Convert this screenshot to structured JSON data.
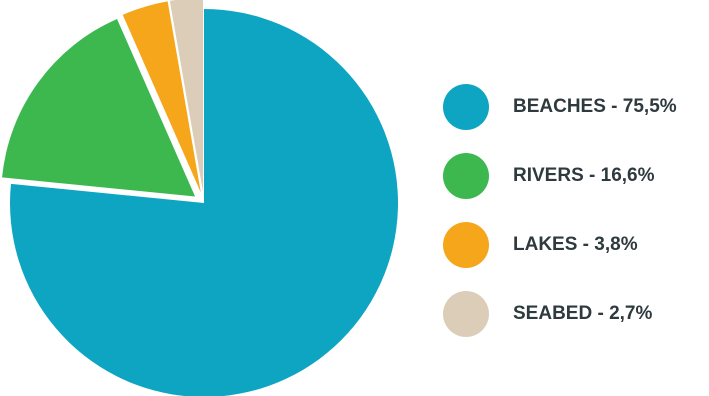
{
  "chart_data": {
    "type": "pie",
    "start_angle": "12 o'clock",
    "direction": "clockwise",
    "exploded": true,
    "legend_placement": "right",
    "slices": [
      {
        "name": "BEACHES",
        "value": 75.5,
        "label": "BEACHES - 75,5%",
        "color": "#0ea5c2"
      },
      {
        "name": "RIVERS",
        "value": 16.6,
        "label": "RIVERS - 16,6%",
        "color": "#3db84f"
      },
      {
        "name": "LAKES",
        "value": 3.8,
        "label": "LAKES - 3,8%",
        "color": "#f5a61a"
      },
      {
        "name": "SEABED",
        "value": 2.7,
        "label": "SEABED - 2,7%",
        "color": "#dccdb8"
      }
    ]
  }
}
